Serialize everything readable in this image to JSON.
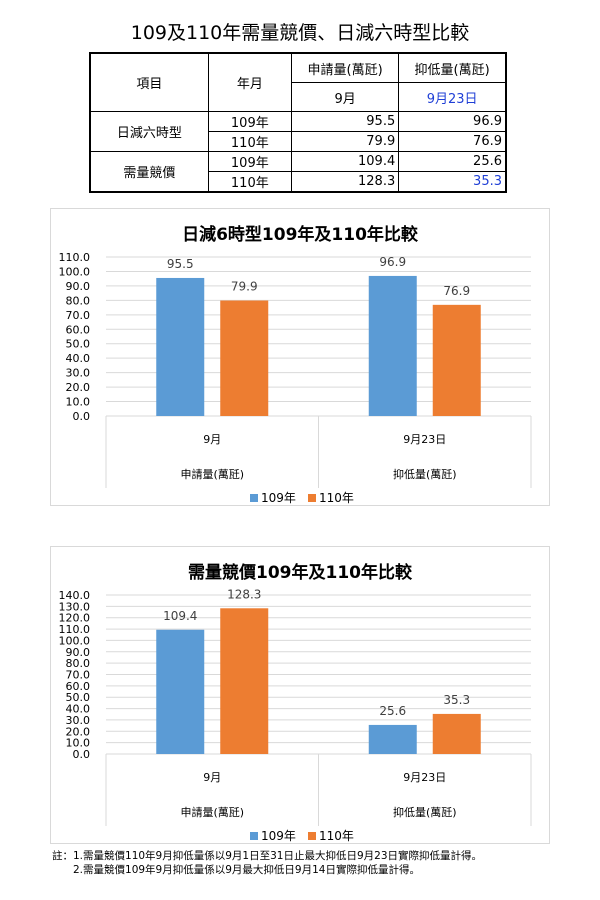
{
  "page_title": "109及110年需量競價、日減六時型比較",
  "table": {
    "headers": {
      "item": "項目",
      "year": "年月",
      "apply": "申請量(萬瓩)",
      "apply_month": "9月",
      "suppress": "抑低量(萬瓩)",
      "suppress_date": "9月23日"
    },
    "groups": [
      {
        "name": "日減六時型",
        "rows": [
          {
            "year": "109年",
            "apply": "95.5",
            "suppress": "96.9"
          },
          {
            "year": "110年",
            "apply": "79.9",
            "suppress": "76.9"
          }
        ]
      },
      {
        "name": "需量競價",
        "rows": [
          {
            "year": "109年",
            "apply": "109.4",
            "suppress": "25.6"
          },
          {
            "year": "110年",
            "apply": "128.3",
            "suppress": "35.3"
          }
        ]
      }
    ],
    "colors": {
      "border": "#000000",
      "highlight_text": "#1f3fd6"
    }
  },
  "chart_data": [
    {
      "type": "bar",
      "title": "日減6時型109年及110年比較",
      "categories": [
        "9月",
        "9月23日"
      ],
      "groups": [
        "申請量(萬瓩)",
        "抑低量(萬瓩)"
      ],
      "series": [
        {
          "name": "109年",
          "values": [
            95.5,
            96.9
          ],
          "labels": [
            "95.5",
            "96.9"
          ],
          "color": "#5b9bd5"
        },
        {
          "name": "110年",
          "values": [
            79.9,
            76.9
          ],
          "labels": [
            "79.9",
            "76.9"
          ],
          "color": "#ed7d31"
        }
      ],
      "ylim": [
        0,
        110
      ],
      "ytick_step": 10,
      "ytick_labels": [
        "0.0",
        "10.0",
        "20.0",
        "30.0",
        "40.0",
        "50.0",
        "60.0",
        "70.0",
        "80.0",
        "90.0",
        "100.0",
        "110.0"
      ],
      "grid": true,
      "legend": "bottom"
    },
    {
      "type": "bar",
      "title": "需量競價109年及110年比較",
      "categories": [
        "9月",
        "9月23日"
      ],
      "groups": [
        "申請量(萬瓩)",
        "抑低量(萬瓩)"
      ],
      "series": [
        {
          "name": "109年",
          "values": [
            109.4,
            25.6
          ],
          "labels": [
            "109.4",
            "25.6"
          ],
          "color": "#5b9bd5"
        },
        {
          "name": "110年",
          "values": [
            128.3,
            35.3
          ],
          "labels": [
            "128.3",
            "35.3"
          ],
          "color": "#ed7d31"
        }
      ],
      "ylim": [
        0,
        140
      ],
      "ytick_step": 10,
      "ytick_labels": [
        "0.0",
        "10.0",
        "20.0",
        "30.0",
        "40.0",
        "50.0",
        "60.0",
        "70.0",
        "80.0",
        "90.0",
        "100.0",
        "110.0",
        "120.0",
        "130.0",
        "140.0"
      ],
      "grid": true,
      "legend": "bottom"
    }
  ],
  "note": {
    "line1": "註：1.需量競價110年9月抑低量係以9月1日至31日止最大抑低日9月23日實際抑低量計得。",
    "line2": "　　2.需量競價109年9月抑低量係以9月最大抑低日9月14日實際抑低量計得。"
  }
}
